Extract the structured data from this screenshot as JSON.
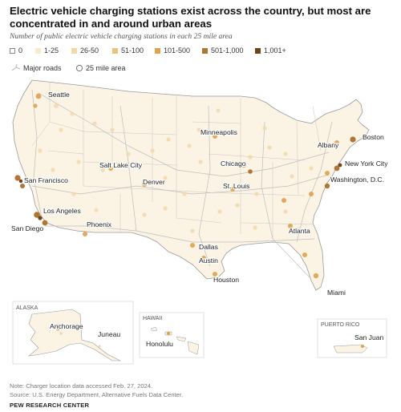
{
  "title": "Electric vehicle charging stations exist across the country, but most are concentrated in and around urban areas",
  "subtitle": "Number of public electric vehicle charging stations in each 25 mile area",
  "legend": {
    "bins": [
      {
        "label": "0",
        "color": "#ffffff"
      },
      {
        "label": "1-25",
        "color": "#f8ead1"
      },
      {
        "label": "26-50",
        "color": "#f3d8ab"
      },
      {
        "label": "51-100",
        "color": "#ecc27c"
      },
      {
        "label": "101-500",
        "color": "#e0a24c"
      },
      {
        "label": "501-1,000",
        "color": "#b07634"
      },
      {
        "label": "1,001+",
        "color": "#6b4418"
      }
    ],
    "roads_label": "Major roads",
    "area_label": "25 mile area"
  },
  "cities": {
    "seattle": "Seattle",
    "minneapolis": "Minneapolis",
    "boston": "Boston",
    "albany": "Albany",
    "chicago": "Chicago",
    "new_york": "New York City",
    "salt_lake": "Salt Lake City",
    "denver": "Denver",
    "st_louis": "St. Louis",
    "washington": "Washington, D.C.",
    "san_francisco": "San Francisco",
    "los_angeles": "Los Angeles",
    "san_diego": "San Diego",
    "phoenix": "Phoenix",
    "dallas": "Dallas",
    "atlanta": "Atlanta",
    "austin": "Austin",
    "houston": "Houston",
    "miami": "Miami",
    "anchorage": "Anchorage",
    "juneau": "Juneau",
    "honolulu": "Honolulu",
    "san_juan": "San Juan"
  },
  "insets": {
    "alaska": "ALASKA",
    "hawaii": "HAWAII",
    "puerto_rico": "PUERTO RICO"
  },
  "note": "Note: Charger location data accessed Feb. 27, 2024.",
  "source": "Source: U.S. Energy Department, Alternative Fuels Data Center.",
  "brand": "PEW RESEARCH CENTER"
}
